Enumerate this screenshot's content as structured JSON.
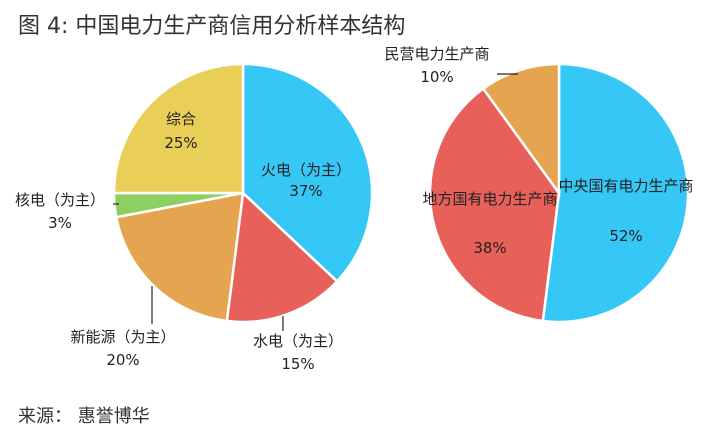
{
  "title": "图 4: 中国电力生产商信用分析样本结构",
  "source": "来源： 惠誉博华",
  "chart_data": [
    {
      "type": "pie",
      "slices": [
        {
          "label": "火电（为主）",
          "value_label": "37%",
          "value": 37,
          "color": "#35C8F7"
        },
        {
          "label": "水电（为主）",
          "value_label": "15%",
          "value": 15,
          "color": "#E8605A"
        },
        {
          "label": "新能源（为主）",
          "value_label": "20%",
          "value": 20,
          "color": "#E5A550"
        },
        {
          "label": "核电（为主）",
          "value_label": "3%",
          "value": 3,
          "color": "#8CD063"
        },
        {
          "label": "综合",
          "value_label": "25%",
          "value": 25,
          "color": "#E9CE58"
        }
      ]
    },
    {
      "type": "pie",
      "slices": [
        {
          "label": "中央国有电力生产商",
          "value_label": "52%",
          "value": 52,
          "color": "#35C8F7"
        },
        {
          "label": "地方国有电力生产商",
          "value_label": "38%",
          "value": 38,
          "color": "#E8605A"
        },
        {
          "label": "民营电力生产商",
          "value_label": "10%",
          "value": 10,
          "color": "#E5A550"
        }
      ]
    }
  ]
}
